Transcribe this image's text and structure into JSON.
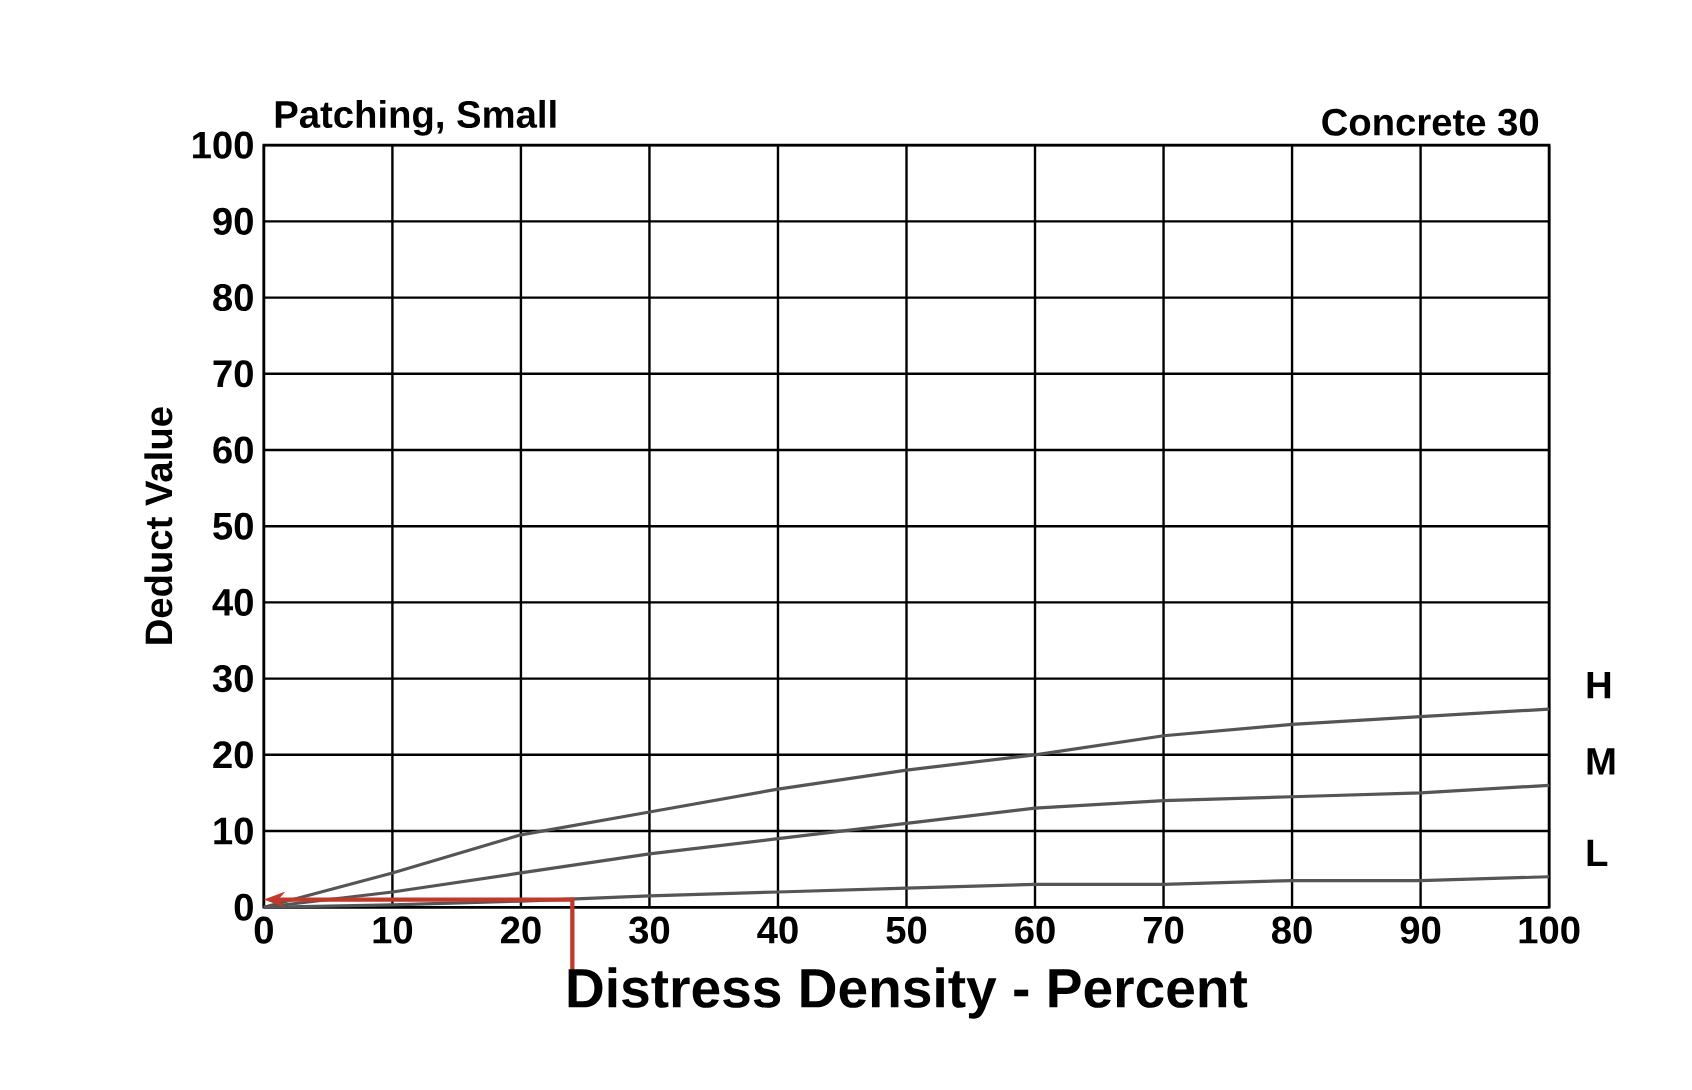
{
  "chart_data": {
    "type": "line",
    "title": "Patching, Small",
    "subtitle": "Concrete 30",
    "xlabel": "Distress Density - Percent",
    "ylabel": "Deduct Value",
    "x": [
      0,
      10,
      20,
      30,
      40,
      50,
      60,
      70,
      80,
      90,
      100
    ],
    "series": [
      {
        "name": "H",
        "color": "#555555",
        "values": [
          0,
          4.5,
          9.5,
          12.5,
          15.5,
          18,
          20,
          22.5,
          24,
          25,
          26
        ]
      },
      {
        "name": "M",
        "color": "#555555",
        "values": [
          0,
          2,
          4.5,
          7,
          9,
          11,
          13,
          14,
          14.5,
          15,
          16
        ]
      },
      {
        "name": "L",
        "color": "#555555",
        "values": [
          0,
          0.3,
          0.8,
          1.5,
          2,
          2.5,
          3,
          3,
          3.5,
          3.5,
          4
        ]
      }
    ],
    "xlim": [
      0,
      100
    ],
    "ylim": [
      0,
      100
    ],
    "xticks": [
      0,
      10,
      20,
      30,
      40,
      50,
      60,
      70,
      80,
      90,
      100
    ],
    "yticks": [
      0,
      10,
      20,
      30,
      40,
      50,
      60,
      70,
      80,
      90,
      100
    ],
    "grid": true,
    "marker": "none",
    "line_style": "solid"
  }
}
